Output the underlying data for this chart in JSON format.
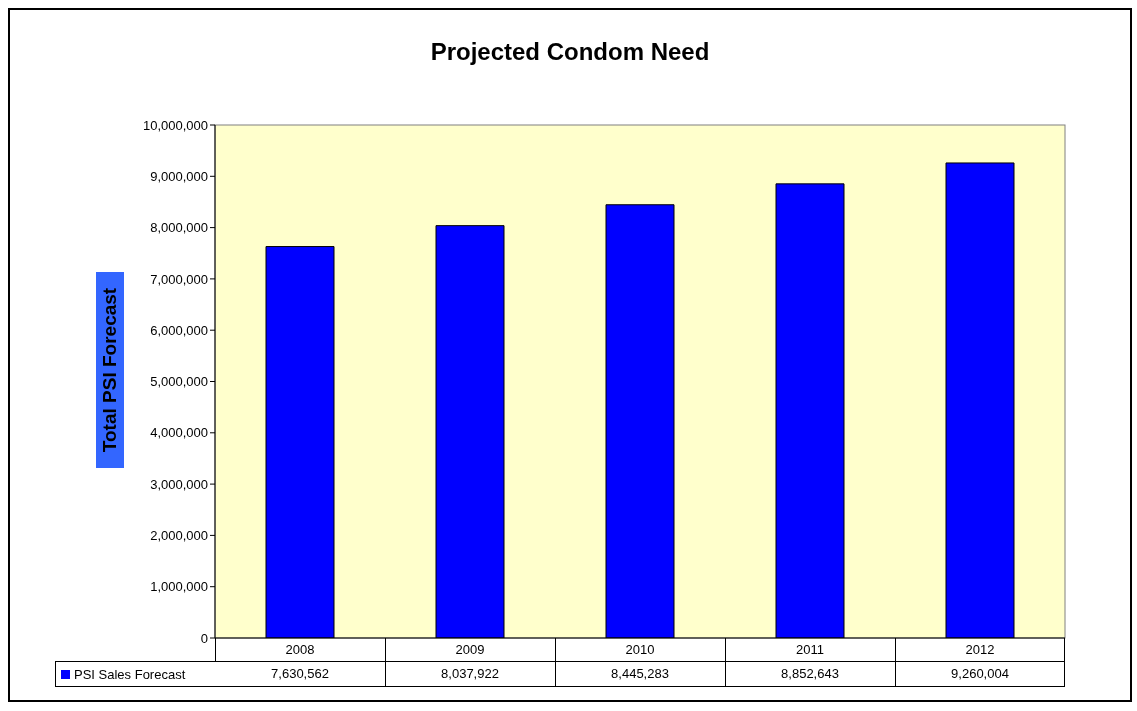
{
  "chart_data": {
    "type": "bar",
    "title": "Projected Condom Need",
    "ylabel": "Total PSI Forecast",
    "categories": [
      "2008",
      "2009",
      "2010",
      "2011",
      "2012"
    ],
    "series": [
      {
        "name": "PSI Sales Forecast",
        "color": "#0000ff",
        "values": [
          7630562,
          8037922,
          8445283,
          8852643,
          9260004
        ],
        "value_labels": [
          "7,630,562",
          "8,037,922",
          "8,445,283",
          "8,852,643",
          "9,260,004"
        ]
      }
    ],
    "ylim": [
      0,
      10000000
    ],
    "yticks": [
      0,
      {
        "value": 1000000,
        "label": "1,000,000"
      },
      {
        "value": 2000000,
        "label": "2,000,000"
      },
      {
        "value": 3000000,
        "label": "3,000,000"
      },
      {
        "value": 4000000,
        "label": "4,000,000"
      },
      {
        "value": 5000000,
        "label": "5,000,000"
      },
      {
        "value": 6000000,
        "label": "6,000,000"
      },
      {
        "value": 7000000,
        "label": "7,000,000"
      },
      {
        "value": 8000000,
        "label": "8,000,000"
      },
      {
        "value": 9000000,
        "label": "9,000,000"
      },
      {
        "value": 10000000,
        "label": "10,000,000"
      }
    ],
    "legend": "bottom left"
  }
}
